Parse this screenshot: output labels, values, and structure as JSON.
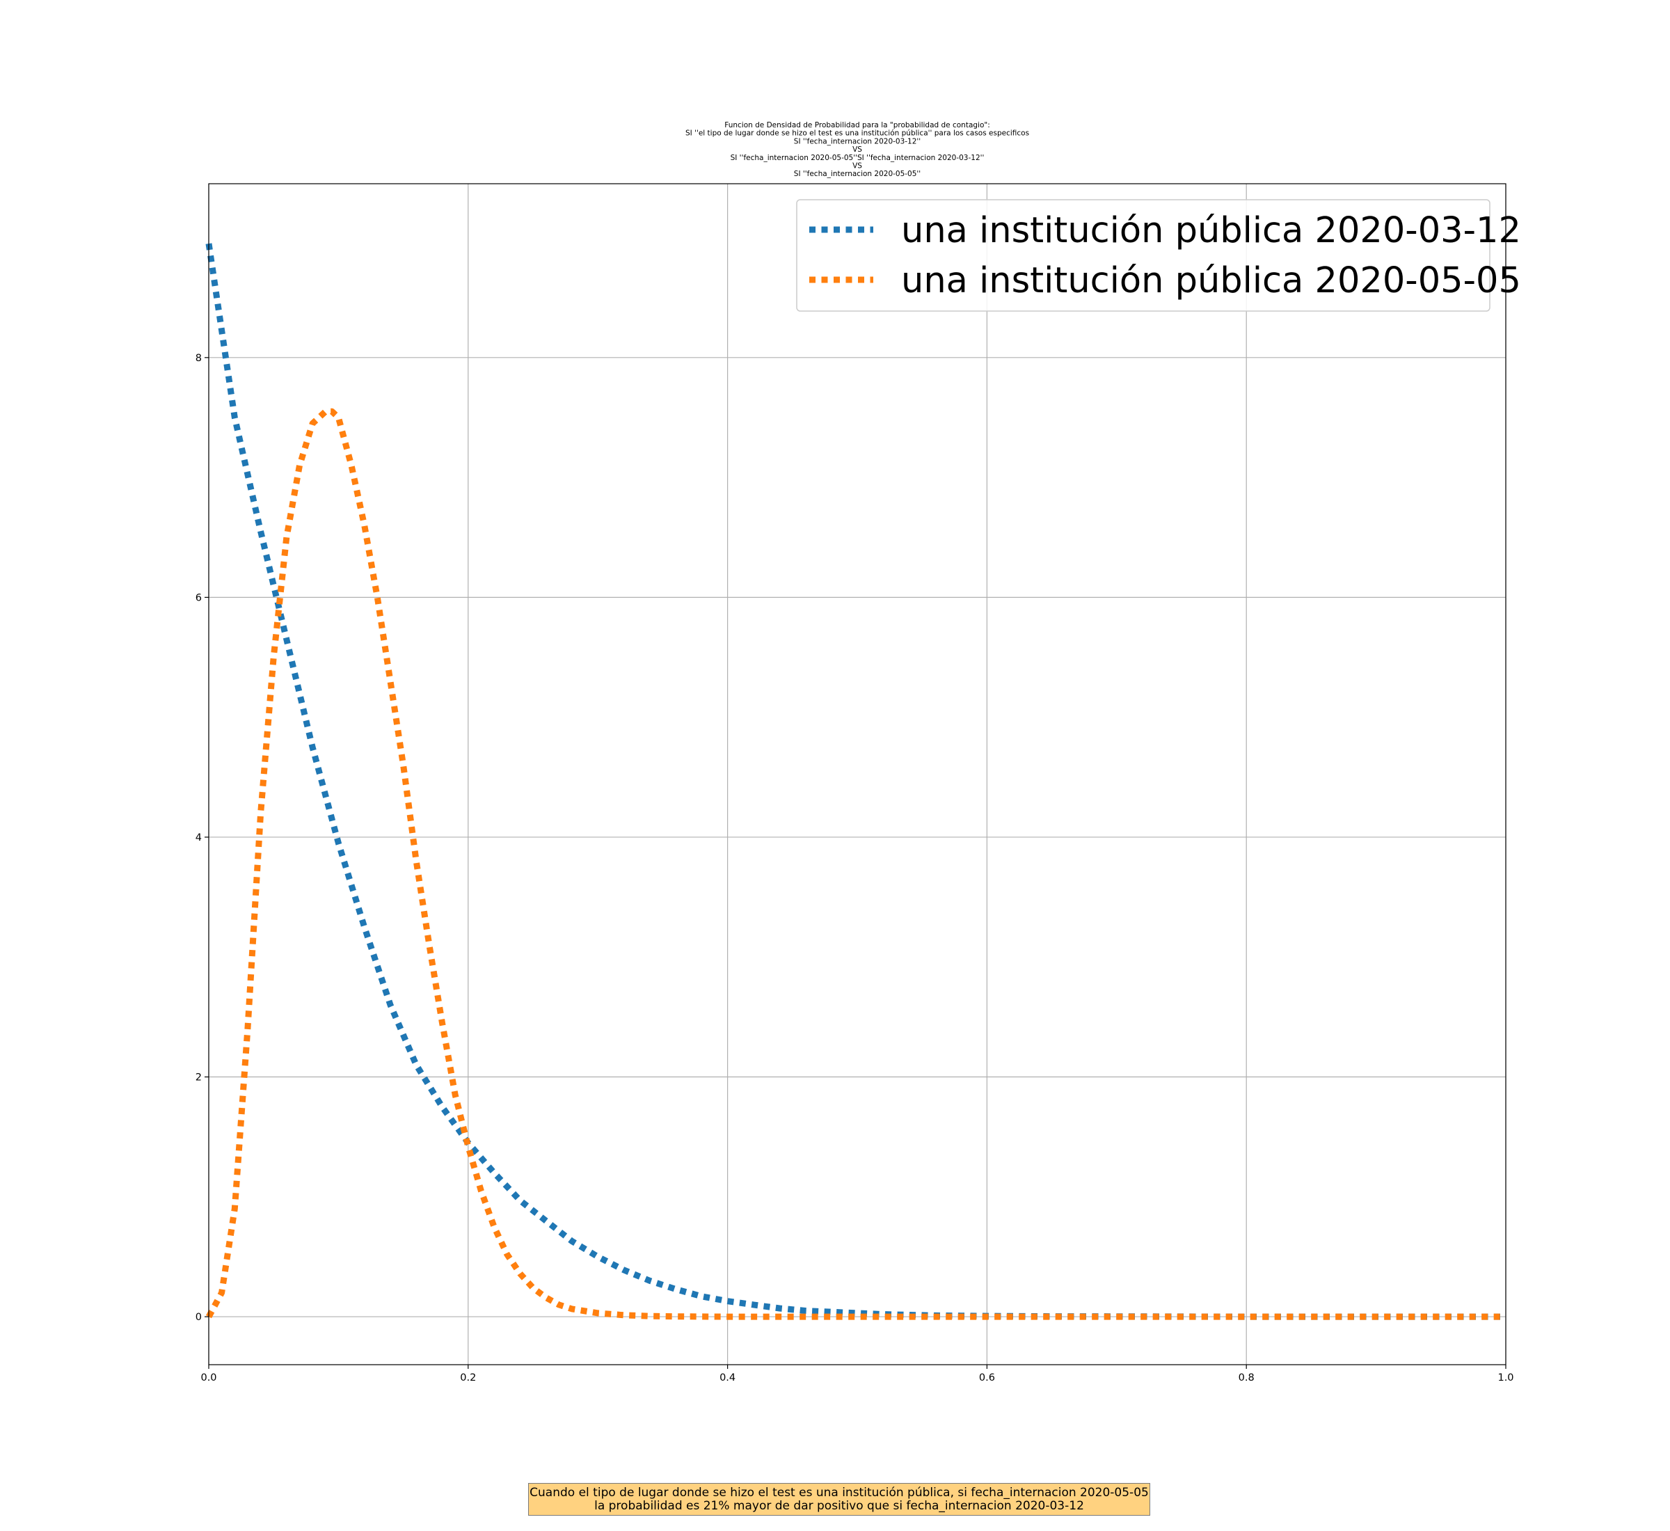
{
  "chart_data": {
    "type": "line",
    "title_lines": [
      "Funcion de Densidad de Probabilidad para la \"probabilidad de contagio\":",
      "SI ''el tipo de lugar donde se hizo el test es una institución pública'' para los casos especificos",
      "SI ''fecha_internacion 2020-03-12''",
      "VS",
      "SI ''fecha_internacion 2020-05-05''SI ''fecha_internacion 2020-03-12''",
      "VS",
      "SI ''fecha_internacion 2020-05-05''"
    ],
    "xlabel": "",
    "ylabel": "",
    "xlim": [
      0.0,
      1.0
    ],
    "ylim": [
      -0.4,
      9.45
    ],
    "x_ticks": [
      0.0,
      0.2,
      0.4,
      0.6,
      0.8,
      1.0
    ],
    "x_tick_labels": [
      "0.0",
      "0.2",
      "0.4",
      "0.6",
      "0.8",
      "1.0"
    ],
    "y_ticks": [
      0,
      2,
      4,
      6,
      8
    ],
    "y_tick_labels": [
      "0",
      "2",
      "4",
      "6",
      "8"
    ],
    "grid": true,
    "legend_position": "top-right",
    "line_style": "dotted",
    "series": [
      {
        "name": "una institución pública 2020-03-12",
        "color": "#1f77b4",
        "x": [
          0.0,
          0.02,
          0.04,
          0.06,
          0.08,
          0.1,
          0.12,
          0.14,
          0.16,
          0.18,
          0.2,
          0.22,
          0.24,
          0.26,
          0.28,
          0.3,
          0.32,
          0.34,
          0.36,
          0.38,
          0.4,
          0.42,
          0.44,
          0.46,
          0.48,
          0.5,
          0.52,
          0.54,
          0.56,
          0.58,
          0.6,
          0.65,
          0.7,
          0.75,
          0.8,
          0.85,
          0.9,
          0.95,
          1.0
        ],
        "y": [
          8.95,
          7.5,
          6.55,
          5.65,
          4.75,
          3.95,
          3.25,
          2.6,
          2.1,
          1.75,
          1.45,
          1.2,
          0.97,
          0.8,
          0.63,
          0.5,
          0.39,
          0.3,
          0.23,
          0.17,
          0.13,
          0.1,
          0.07,
          0.05,
          0.04,
          0.03,
          0.02,
          0.015,
          0.01,
          0.008,
          0.006,
          0.003,
          0.002,
          0.001,
          0.0,
          0.0,
          0.0,
          0.0,
          0.0
        ]
      },
      {
        "name": "una institución pública 2020-05-05",
        "color": "#ff7f0e",
        "x": [
          0.0,
          0.01,
          0.02,
          0.03,
          0.04,
          0.05,
          0.06,
          0.07,
          0.08,
          0.09,
          0.095,
          0.1,
          0.11,
          0.12,
          0.13,
          0.14,
          0.15,
          0.16,
          0.17,
          0.18,
          0.19,
          0.2,
          0.21,
          0.22,
          0.23,
          0.24,
          0.25,
          0.26,
          0.27,
          0.28,
          0.3,
          0.32,
          0.34,
          0.36,
          0.38,
          0.4,
          0.45,
          0.5,
          0.55,
          0.6,
          0.7,
          0.8,
          0.9,
          1.0
        ],
        "y": [
          0.0,
          0.2,
          0.9,
          2.4,
          4.2,
          5.5,
          6.5,
          7.1,
          7.45,
          7.55,
          7.55,
          7.5,
          7.1,
          6.6,
          6.0,
          5.3,
          4.6,
          3.8,
          3.1,
          2.45,
          1.85,
          1.42,
          1.05,
          0.75,
          0.52,
          0.36,
          0.24,
          0.16,
          0.1,
          0.065,
          0.03,
          0.013,
          0.005,
          0.002,
          0.001,
          0.0,
          0.0,
          0.0,
          0.0,
          0.0,
          0.0,
          0.0,
          0.0,
          0.0
        ]
      }
    ],
    "annotation": {
      "lines": [
        "Cuando el tipo de lugar donde se hizo el test es una institución pública, si fecha_internacion 2020-05-05",
        "la probabilidad es 21% mayor de dar positivo que si fecha_internacion 2020-03-12"
      ],
      "background": "#ffd280"
    }
  }
}
